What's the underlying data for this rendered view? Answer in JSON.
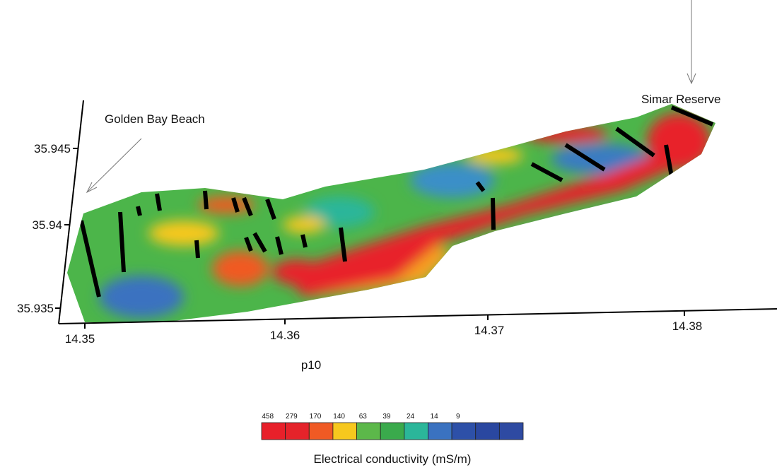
{
  "map": {
    "x_ticks": [
      "14.35",
      "14.36",
      "14.37",
      "14.38"
    ],
    "y_ticks": [
      "35.945",
      "35.94",
      "35.935"
    ],
    "x_label": "p10",
    "annotations": [
      "Golden Bay Beach",
      "Simar Reserve"
    ],
    "legend": {
      "title": "Electrical conductivity (mS/m)",
      "values": [
        "458",
        "279",
        "170",
        "140",
        "63",
        "39",
        "24",
        "14",
        "9"
      ],
      "colors": [
        "#e8202a",
        "#e5232a",
        "#f05a24",
        "#f7c81e",
        "#5cb84a",
        "#3aaa4c",
        "#2bb69a",
        "#3a72c0",
        "#2d50a8",
        "#2a47a0",
        "#2e4aa2"
      ]
    }
  }
}
